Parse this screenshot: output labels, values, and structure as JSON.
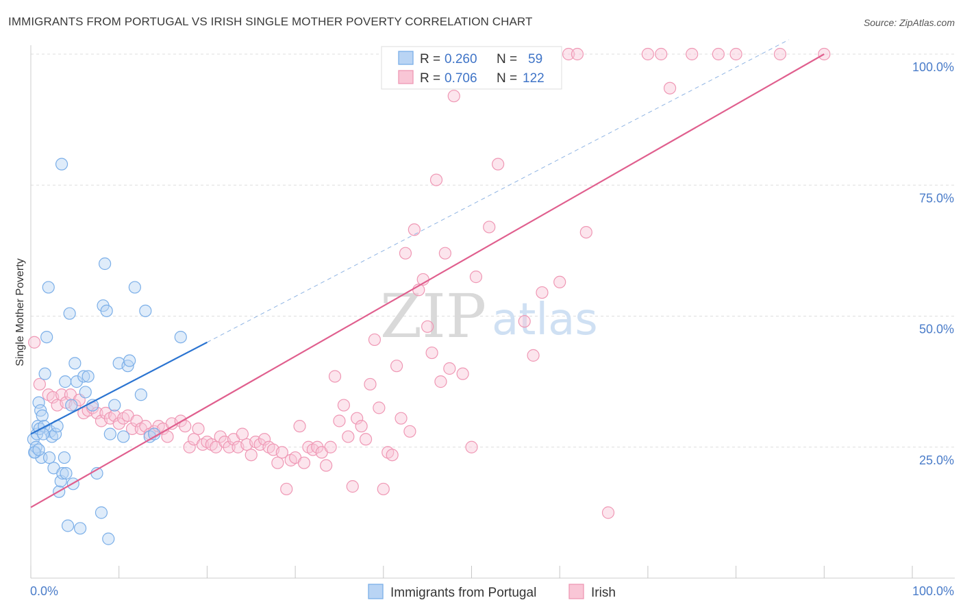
{
  "title": "IMMIGRANTS FROM PORTUGAL VS IRISH SINGLE MOTHER POVERTY CORRELATION CHART",
  "source": "Source: ZipAtlas.com",
  "watermark": {
    "zip": "ZIP",
    "atlas": "atlas"
  },
  "colors": {
    "blue": "#7aaee8",
    "blue_fill": "#b9d4f4",
    "blue_line": "#2b74d1",
    "pink": "#ef97b4",
    "pink_fill": "#f9c6d6",
    "pink_line": "#e05f8e",
    "tick": "#4a7cc9",
    "grid": "#dddddd"
  },
  "legend": {
    "r_label": "R =",
    "n_label": "N =",
    "rows": [
      {
        "r": "0.260",
        "n": "59"
      },
      {
        "r": "0.706",
        "n": "122"
      }
    ]
  },
  "chart_data": {
    "type": "scatter",
    "xlabel": "",
    "ylabel": "Single Mother Poverty",
    "xlim": [
      0,
      100
    ],
    "ylim": [
      0,
      100
    ],
    "x_tick_labels": [
      "0.0%",
      "100.0%"
    ],
    "y_tick_labels": [
      "25.0%",
      "50.0%",
      "75.0%",
      "100.0%"
    ],
    "y_ticks": [
      25,
      50,
      75,
      100
    ],
    "grid": true,
    "series": [
      {
        "name": "Immigrants from Portugal",
        "color": "#7aaee8",
        "trend": {
          "x0": 0,
          "y0": 27.5,
          "x1": 20,
          "y1": 45,
          "dashed_to_x": 86
        },
        "points": [
          [
            0.3,
            26.5
          ],
          [
            0.5,
            24
          ],
          [
            0.6,
            25
          ],
          [
            0.7,
            27.5
          ],
          [
            0.8,
            29
          ],
          [
            0.9,
            33.5
          ],
          [
            1.0,
            28.5
          ],
          [
            1.1,
            32
          ],
          [
            1.2,
            23
          ],
          [
            1.3,
            31
          ],
          [
            1.5,
            29
          ],
          [
            1.6,
            39
          ],
          [
            1.8,
            46
          ],
          [
            2.0,
            55.5
          ],
          [
            2.2,
            28
          ],
          [
            2.4,
            27
          ],
          [
            2.6,
            21
          ],
          [
            2.8,
            27.5
          ],
          [
            3.0,
            29
          ],
          [
            3.2,
            16.5
          ],
          [
            3.4,
            18.5
          ],
          [
            3.5,
            79
          ],
          [
            3.6,
            20
          ],
          [
            3.8,
            23
          ],
          [
            3.9,
            37.5
          ],
          [
            4.0,
            20
          ],
          [
            4.2,
            10
          ],
          [
            4.4,
            50.5
          ],
          [
            4.6,
            33
          ],
          [
            4.8,
            18
          ],
          [
            5.0,
            41
          ],
          [
            5.2,
            37.5
          ],
          [
            5.6,
            9.5
          ],
          [
            6.0,
            38.5
          ],
          [
            6.2,
            35.5
          ],
          [
            6.5,
            38.5
          ],
          [
            7.0,
            33
          ],
          [
            7.5,
            20
          ],
          [
            8.0,
            12.5
          ],
          [
            8.2,
            52
          ],
          [
            8.4,
            60
          ],
          [
            8.6,
            51
          ],
          [
            8.8,
            7.5
          ],
          [
            9.0,
            27.5
          ],
          [
            9.5,
            33
          ],
          [
            10.0,
            41
          ],
          [
            10.5,
            27
          ],
          [
            11.0,
            40.5
          ],
          [
            11.2,
            41.5
          ],
          [
            11.8,
            55.5
          ],
          [
            12.5,
            35
          ],
          [
            13.0,
            51
          ],
          [
            13.5,
            27
          ],
          [
            14.0,
            27.5
          ],
          [
            17.0,
            46
          ],
          [
            0.4,
            24
          ],
          [
            0.9,
            24.5
          ],
          [
            1.4,
            27.5
          ],
          [
            2.1,
            23
          ]
        ]
      },
      {
        "name": "Irish",
        "color": "#ef97b4",
        "trend": {
          "x0": 0,
          "y0": 13.5,
          "x1": 90,
          "y1": 100
        },
        "points": [
          [
            0.4,
            45
          ],
          [
            1.0,
            37
          ],
          [
            2.0,
            35
          ],
          [
            2.5,
            34.5
          ],
          [
            3.0,
            33
          ],
          [
            3.5,
            35
          ],
          [
            4.0,
            33.5
          ],
          [
            4.5,
            35
          ],
          [
            5.0,
            33
          ],
          [
            5.5,
            34
          ],
          [
            6.0,
            31.5
          ],
          [
            6.5,
            32
          ],
          [
            7.0,
            32.5
          ],
          [
            7.5,
            31.5
          ],
          [
            8.0,
            30
          ],
          [
            8.5,
            31.5
          ],
          [
            9.0,
            30.5
          ],
          [
            9.5,
            31
          ],
          [
            10.0,
            29.5
          ],
          [
            10.5,
            30.5
          ],
          [
            11.0,
            31
          ],
          [
            11.5,
            28.5
          ],
          [
            12.0,
            30
          ],
          [
            12.5,
            28.5
          ],
          [
            13.0,
            29
          ],
          [
            13.5,
            27.5
          ],
          [
            14.0,
            28
          ],
          [
            14.5,
            29
          ],
          [
            15.0,
            28.5
          ],
          [
            15.5,
            27
          ],
          [
            16.0,
            29.5
          ],
          [
            17.0,
            30
          ],
          [
            17.5,
            29
          ],
          [
            18.0,
            25
          ],
          [
            18.5,
            26.5
          ],
          [
            19.0,
            28.5
          ],
          [
            19.5,
            25.5
          ],
          [
            20.0,
            26
          ],
          [
            20.5,
            25.5
          ],
          [
            21.0,
            25
          ],
          [
            21.5,
            27
          ],
          [
            22.0,
            26
          ],
          [
            22.5,
            25
          ],
          [
            23.0,
            26.5
          ],
          [
            23.5,
            25
          ],
          [
            24.0,
            27.5
          ],
          [
            24.5,
            25.5
          ],
          [
            25.0,
            23.5
          ],
          [
            25.5,
            26
          ],
          [
            26.0,
            25.5
          ],
          [
            26.5,
            26.5
          ],
          [
            27.0,
            25
          ],
          [
            27.5,
            24.5
          ],
          [
            28.0,
            22
          ],
          [
            28.5,
            24
          ],
          [
            29.0,
            17
          ],
          [
            29.5,
            22.5
          ],
          [
            30.0,
            23
          ],
          [
            30.5,
            29
          ],
          [
            31.0,
            22
          ],
          [
            31.5,
            25
          ],
          [
            32.0,
            24.5
          ],
          [
            32.5,
            25
          ],
          [
            33.0,
            24
          ],
          [
            33.5,
            21.5
          ],
          [
            34.0,
            25
          ],
          [
            34.5,
            38.5
          ],
          [
            35.0,
            30
          ],
          [
            35.5,
            33
          ],
          [
            36.0,
            27
          ],
          [
            36.5,
            17.5
          ],
          [
            37.0,
            30.5
          ],
          [
            37.5,
            29
          ],
          [
            38.0,
            26.5
          ],
          [
            38.5,
            37
          ],
          [
            39.0,
            45.5
          ],
          [
            39.5,
            32.5
          ],
          [
            40.0,
            17
          ],
          [
            40.5,
            24
          ],
          [
            41.0,
            23.5
          ],
          [
            41.5,
            40.5
          ],
          [
            42.0,
            30.5
          ],
          [
            42.5,
            62
          ],
          [
            43.0,
            28
          ],
          [
            43.5,
            66.5
          ],
          [
            44.0,
            55
          ],
          [
            44.5,
            57
          ],
          [
            45.0,
            48
          ],
          [
            45.5,
            43
          ],
          [
            46.0,
            76
          ],
          [
            46.5,
            37.5
          ],
          [
            47.0,
            62
          ],
          [
            47.5,
            40
          ],
          [
            48.0,
            92
          ],
          [
            49.0,
            39
          ],
          [
            50.0,
            25
          ],
          [
            50.5,
            57.5
          ],
          [
            51.0,
            100
          ],
          [
            52.0,
            67
          ],
          [
            52.5,
            100
          ],
          [
            53.0,
            79
          ],
          [
            54.0,
            100
          ],
          [
            55.0,
            100
          ],
          [
            56.0,
            49
          ],
          [
            57.0,
            42.5
          ],
          [
            58.0,
            54.5
          ],
          [
            59.0,
            100
          ],
          [
            60.0,
            56.5
          ],
          [
            61.0,
            100
          ],
          [
            62.0,
            100
          ],
          [
            63.0,
            66
          ],
          [
            65.5,
            12.5
          ],
          [
            70.0,
            100
          ],
          [
            71.5,
            100
          ],
          [
            72.5,
            93.5
          ],
          [
            75.0,
            100
          ],
          [
            78.0,
            100
          ],
          [
            80.0,
            100
          ],
          [
            85.0,
            100
          ],
          [
            90.0,
            100
          ]
        ]
      }
    ]
  }
}
